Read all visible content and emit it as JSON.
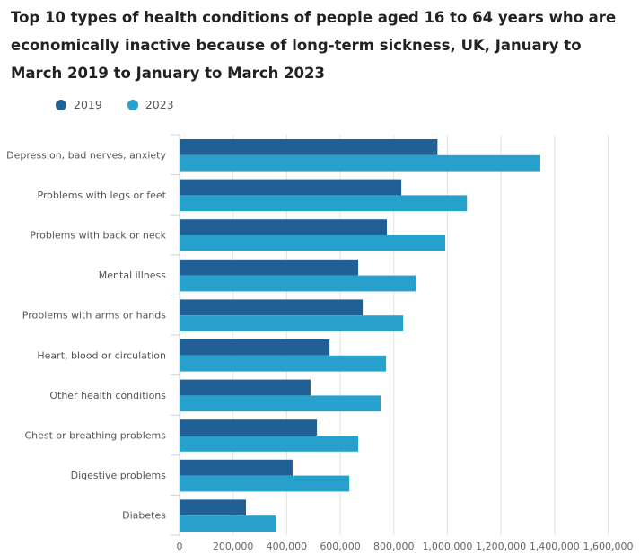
{
  "chart_data": {
    "type": "bar",
    "orientation": "horizontal",
    "title": "Top 10 types of health conditions of people aged 16 to 64 years who are economically inactive because of long-term sickness, UK, January to March 2019 to January to March 2023",
    "categories": [
      "Depression, bad nerves, anxiety",
      "Problems with legs or feet",
      "Problems with back or neck",
      "Mental illness",
      "Problems with arms or hands",
      "Heart, blood or circulation",
      "Other health conditions",
      "Chest or breathing problems",
      "Digestive problems",
      "Diabetes"
    ],
    "series": [
      {
        "name": "2019",
        "color": "#206095",
        "values": [
          963000,
          828000,
          774000,
          667000,
          684000,
          560000,
          489000,
          513000,
          422000,
          248000
        ]
      },
      {
        "name": "2023",
        "color": "#27a0cc",
        "values": [
          1347000,
          1073000,
          992000,
          882000,
          835000,
          771000,
          751000,
          667000,
          634000,
          359000
        ]
      }
    ],
    "xlim": [
      0,
      1600000
    ],
    "xticks": [
      "0",
      "200,000",
      "400,000",
      "600,000",
      "800,000",
      "1,000,000",
      "1,200,000",
      "1,400,000",
      "1,600,000"
    ],
    "grid": true,
    "legend_position": "top-left"
  }
}
